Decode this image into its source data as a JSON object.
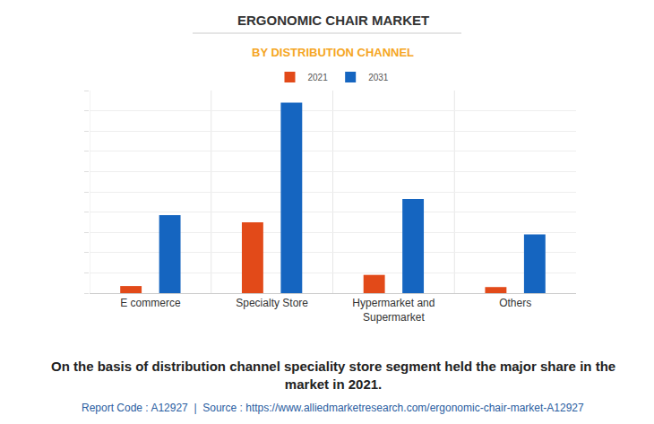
{
  "chart_data": {
    "type": "bar",
    "title": "ERGONOMIC CHAIR MARKET",
    "subtitle": "BY DISTRIBUTION CHANNEL",
    "categories": [
      "E commerce",
      "Specialty Store",
      "Hypermarket and Supermarket",
      "Others"
    ],
    "series": [
      {
        "name": "2021",
        "color": "#e24a19",
        "values": [
          0.35,
          3.5,
          0.9,
          0.3
        ]
      },
      {
        "name": "2031",
        "color": "#1565c0",
        "values": [
          3.85,
          9.4,
          4.65,
          2.9
        ]
      }
    ],
    "ylim": [
      0,
      10
    ],
    "yticks": [
      0,
      1,
      2,
      3,
      4,
      5,
      6,
      7,
      8,
      9,
      10
    ],
    "grid": true,
    "tick_labels": "x",
    "legend": "top",
    "annotations": [
      "On the basis of distribution channel speciality store segment held the major share in the market in 2021.",
      "Report Code : A12927  |  Source : https://www.alliedmarketresearch.com/ergonomic-chair-market-A12927"
    ]
  }
}
